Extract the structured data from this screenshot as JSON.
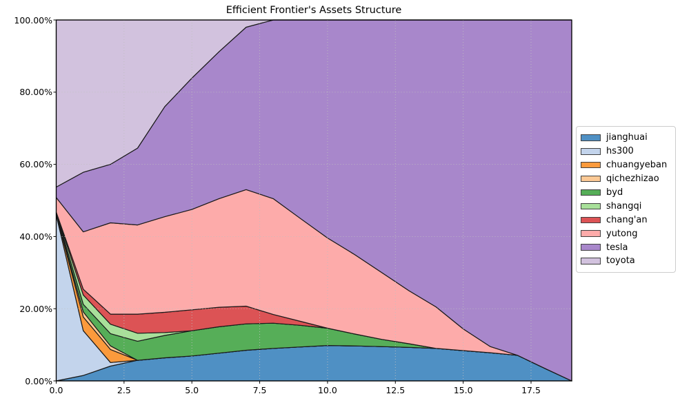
{
  "title": "Efficient Frontier's Assets Structure",
  "axes": {
    "x_tick_labels": [
      "0.0",
      "2.5",
      "5.0",
      "7.5",
      "10.0",
      "12.5",
      "15.0",
      "17.5"
    ],
    "x_tick_values": [
      0,
      2.5,
      5,
      7.5,
      10,
      12.5,
      15,
      17.5
    ],
    "y_tick_labels": [
      "0.00%",
      "20.00%",
      "40.00%",
      "60.00%",
      "80.00%",
      "100.00%"
    ],
    "y_tick_values": [
      0,
      20,
      40,
      60,
      80,
      100
    ]
  },
  "chart_data": {
    "type": "area",
    "stacked": true,
    "title": "Efficient Frontier's Assets Structure",
    "xlabel": "",
    "ylabel": "",
    "xlim": [
      0,
      19
    ],
    "ylim": [
      0,
      100
    ],
    "y_unit": "percent",
    "grid": "dotted",
    "legend_position": "right-outside",
    "edge_color": "#1a1a1a",
    "x": [
      0,
      1,
      2,
      3,
      4,
      5,
      6,
      7,
      8,
      9,
      10,
      11,
      12,
      13,
      14,
      15,
      16,
      17,
      18,
      19
    ],
    "series": [
      {
        "name": "jianghuai",
        "color": "#4f90c4",
        "values": [
          0,
          1.5,
          4.1,
          5.7,
          6.4,
          6.9,
          7.7,
          8.5,
          9.0,
          9.4,
          9.8,
          9.7,
          9.5,
          9.3,
          9.0,
          8.4,
          7.8,
          7.1,
          3.5,
          0
        ]
      },
      {
        "name": "hs300",
        "color": "#c3d4ec",
        "values": [
          46,
          12.4,
          1.0,
          0,
          0,
          0,
          0,
          0,
          0,
          0,
          0,
          0,
          0,
          0,
          0,
          0,
          0,
          0,
          0,
          0
        ]
      },
      {
        "name": "chuangyeban",
        "color": "#fb9a3c",
        "values": [
          0.2,
          3.8,
          3.6,
          0,
          0,
          0,
          0,
          0,
          0,
          0,
          0,
          0,
          0,
          0,
          0,
          0,
          0,
          0,
          0,
          0
        ]
      },
      {
        "name": "qichezhizao",
        "color": "#fcc995",
        "values": [
          0.1,
          1.4,
          1.0,
          0,
          0,
          0,
          0,
          0,
          0,
          0,
          0,
          0,
          0,
          0,
          0,
          0,
          0,
          0,
          0,
          0
        ]
      },
      {
        "name": "byd",
        "color": "#56ae58",
        "values": [
          0.2,
          2.1,
          3.4,
          5.3,
          6.2,
          7.0,
          7.3,
          7.3,
          7.0,
          6.0,
          4.8,
          3.3,
          2.0,
          1.0,
          0,
          0,
          0,
          0,
          0,
          0
        ]
      },
      {
        "name": "shangqi",
        "color": "#a8e09a",
        "values": [
          0.15,
          2.6,
          2.6,
          2.2,
          0.8,
          0,
          0,
          0,
          0,
          0,
          0,
          0,
          0,
          0,
          0,
          0,
          0,
          0,
          0,
          0
        ]
      },
      {
        "name": "chang'an",
        "color": "#dc5355",
        "values": [
          0.1,
          1.6,
          2.8,
          5.3,
          5.6,
          5.8,
          5.4,
          4.9,
          2.4,
          1.1,
          0,
          0,
          0,
          0,
          0,
          0,
          0,
          0,
          0,
          0
        ]
      },
      {
        "name": "yutong",
        "color": "#fdabaa",
        "values": [
          4.05,
          15.9,
          25.3,
          24.7,
          26.5,
          27.8,
          30.1,
          32.3,
          32.1,
          28.5,
          25.0,
          22.0,
          18.5,
          14.7,
          11.5,
          6.0,
          1.7,
          0,
          0,
          0
        ]
      },
      {
        "name": "tesla",
        "color": "#a887cb",
        "values": [
          2.9,
          16.5,
          16.2,
          21.3,
          30.5,
          36.4,
          40.7,
          45.0,
          49.5,
          55.0,
          60.4,
          65.0,
          70.0,
          75.0,
          79.5,
          85.6,
          90.5,
          92.9,
          96.5,
          100
        ]
      },
      {
        "name": "toyota",
        "color": "#d2c2de",
        "values": [
          46.3,
          42.2,
          40.0,
          35.5,
          24.0,
          16.1,
          8.8,
          2.0,
          0,
          0,
          0,
          0,
          0,
          0,
          0,
          0,
          0,
          0,
          0,
          0
        ]
      }
    ]
  }
}
